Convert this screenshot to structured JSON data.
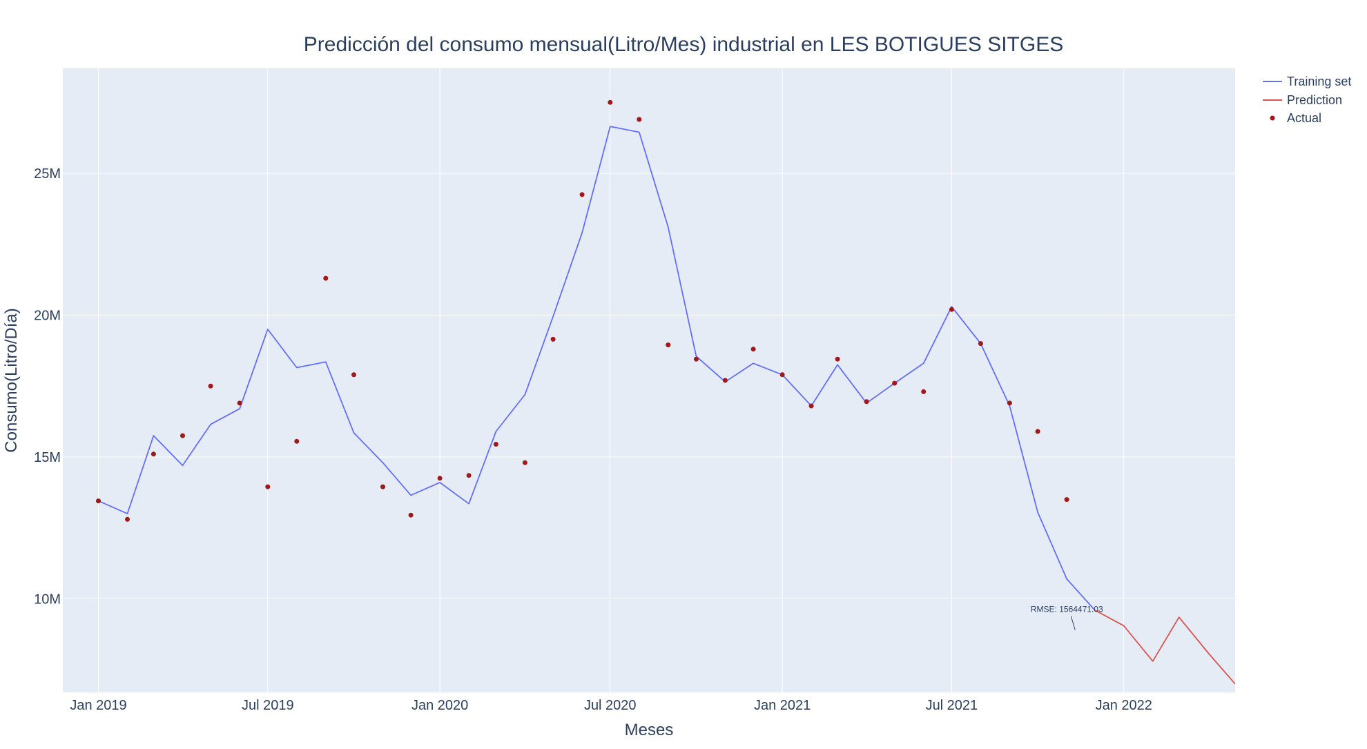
{
  "chart_data": {
    "type": "line",
    "title": "Predicción del consumo mensual(Litro/Mes) industrial en LES BOTIGUES SITGES",
    "xlabel": "Meses",
    "ylabel": "Consumo(Litro/Día)",
    "x_ticks": [
      "Jan 2019",
      "Jul 2019",
      "Jan 2020",
      "Jul 2020",
      "Jan 2021",
      "Jul 2021",
      "Jan 2022"
    ],
    "y_ticks": [
      {
        "value": 10000000,
        "label": "10M"
      },
      {
        "value": 15000000,
        "label": "15M"
      },
      {
        "value": 20000000,
        "label": "20M"
      },
      {
        "value": 25000000,
        "label": "25M"
      }
    ],
    "xlim": [
      "2018-11-24",
      "2022-04-30"
    ],
    "ylim": [
      6700000,
      28700000
    ],
    "grid": true,
    "legend_position": "top-right",
    "series": [
      {
        "name": "Training set",
        "mode": "line",
        "color": "#636efa",
        "points": [
          [
            "2019-01-01",
            13450000
          ],
          [
            "2019-02-01",
            13000000
          ],
          [
            "2019-03-01",
            15750000
          ],
          [
            "2019-04-01",
            14700000
          ],
          [
            "2019-05-01",
            16150000
          ],
          [
            "2019-06-01",
            16700000
          ],
          [
            "2019-07-01",
            19500000
          ],
          [
            "2019-08-01",
            18150000
          ],
          [
            "2019-09-01",
            18350000
          ],
          [
            "2019-10-01",
            15850000
          ],
          [
            "2019-11-01",
            14800000
          ],
          [
            "2019-12-01",
            13650000
          ],
          [
            "2020-01-01",
            14100000
          ],
          [
            "2020-02-01",
            13350000
          ],
          [
            "2020-03-01",
            15900000
          ],
          [
            "2020-04-01",
            17200000
          ],
          [
            "2020-05-01",
            19950000
          ],
          [
            "2020-06-01",
            22900000
          ],
          [
            "2020-07-01",
            26650000
          ],
          [
            "2020-08-01",
            26450000
          ],
          [
            "2020-09-01",
            23100000
          ],
          [
            "2020-10-01",
            18550000
          ],
          [
            "2020-11-01",
            17650000
          ],
          [
            "2020-12-01",
            18300000
          ],
          [
            "2021-01-01",
            17900000
          ],
          [
            "2021-02-01",
            16800000
          ],
          [
            "2021-03-01",
            18250000
          ],
          [
            "2021-04-01",
            16900000
          ],
          [
            "2021-05-01",
            17600000
          ],
          [
            "2021-06-01",
            18300000
          ],
          [
            "2021-07-01",
            20300000
          ],
          [
            "2021-08-01",
            19000000
          ],
          [
            "2021-09-01",
            16800000
          ],
          [
            "2021-10-01",
            13050000
          ],
          [
            "2021-11-01",
            10700000
          ],
          [
            "2021-12-01",
            9600000
          ]
        ]
      },
      {
        "name": "Prediction",
        "mode": "line",
        "color": "#d9534f",
        "points": [
          [
            "2021-12-01",
            9600000
          ],
          [
            "2022-01-01",
            9050000
          ],
          [
            "2022-02-01",
            7800000
          ],
          [
            "2022-03-01",
            9350000
          ],
          [
            "2022-04-01",
            8100000
          ],
          [
            "2022-04-30",
            7000000
          ]
        ]
      },
      {
        "name": "Actual",
        "mode": "markers",
        "color": "#a01818",
        "points": [
          [
            "2019-01-01",
            13450000
          ],
          [
            "2019-02-01",
            12800000
          ],
          [
            "2019-03-01",
            15100000
          ],
          [
            "2019-04-01",
            15750000
          ],
          [
            "2019-05-01",
            17500000
          ],
          [
            "2019-06-01",
            16900000
          ],
          [
            "2019-07-01",
            13950000
          ],
          [
            "2019-08-01",
            15550000
          ],
          [
            "2019-09-01",
            21300000
          ],
          [
            "2019-10-01",
            17900000
          ],
          [
            "2019-11-01",
            13950000
          ],
          [
            "2019-12-01",
            12950000
          ],
          [
            "2020-01-01",
            14250000
          ],
          [
            "2020-02-01",
            14350000
          ],
          [
            "2020-03-01",
            15450000
          ],
          [
            "2020-04-01",
            14800000
          ],
          [
            "2020-05-01",
            19150000
          ],
          [
            "2020-06-01",
            24250000
          ],
          [
            "2020-07-01",
            27500000
          ],
          [
            "2020-08-01",
            26900000
          ],
          [
            "2020-09-01",
            18950000
          ],
          [
            "2020-10-01",
            18450000
          ],
          [
            "2020-11-01",
            17700000
          ],
          [
            "2020-12-01",
            18800000
          ],
          [
            "2021-01-01",
            17900000
          ],
          [
            "2021-02-01",
            16800000
          ],
          [
            "2021-03-01",
            18450000
          ],
          [
            "2021-04-01",
            16950000
          ],
          [
            "2021-05-01",
            17600000
          ],
          [
            "2021-06-01",
            17300000
          ],
          [
            "2021-07-01",
            20200000
          ],
          [
            "2021-08-01",
            19000000
          ],
          [
            "2021-09-01",
            16900000
          ],
          [
            "2021-10-01",
            15900000
          ],
          [
            "2021-11-01",
            13500000
          ]
        ]
      }
    ],
    "annotation": {
      "text": "RMSE: 1564471.03",
      "point": [
        "2021-11-10",
        8900000
      ]
    }
  }
}
